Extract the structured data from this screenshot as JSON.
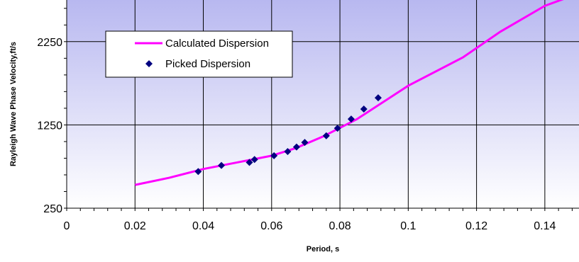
{
  "chart_data": {
    "type": "line",
    "xlabel": "Period, s",
    "ylabel": "Rayleigh Wave Phase Velocity,ft/s",
    "xlim": [
      0,
      0.15
    ],
    "ylim": [
      250,
      2750
    ],
    "x_ticks": [
      0,
      0.02,
      0.04,
      0.06,
      0.08,
      0.1,
      0.12,
      0.14
    ],
    "x_tick_labels": [
      "0",
      "0.02",
      "0.04",
      "0.06",
      "0.08",
      "0.1",
      "0.12",
      "0.14"
    ],
    "y_ticks": [
      250,
      1250,
      2250
    ],
    "y_tick_labels": [
      "250",
      "1250",
      "2250"
    ],
    "grid": true,
    "legend_position": "top-left",
    "series": [
      {
        "name": "Calculated Dispersion",
        "kind": "line",
        "color": "#ff00ff",
        "points": [
          [
            0.02,
            530
          ],
          [
            0.03,
            615
          ],
          [
            0.04,
            720
          ],
          [
            0.05,
            800
          ],
          [
            0.06,
            880
          ],
          [
            0.067,
            970
          ],
          [
            0.075,
            1110
          ],
          [
            0.085,
            1320
          ],
          [
            0.1,
            1720
          ],
          [
            0.116,
            2060
          ],
          [
            0.127,
            2370
          ],
          [
            0.14,
            2680
          ],
          [
            0.15,
            2830
          ]
        ]
      },
      {
        "name": "Picked Dispersion",
        "kind": "scatter",
        "color": "#000080",
        "points": [
          [
            0.0385,
            690
          ],
          [
            0.0453,
            763
          ],
          [
            0.0535,
            800
          ],
          [
            0.055,
            835
          ],
          [
            0.0607,
            880
          ],
          [
            0.0647,
            930
          ],
          [
            0.0673,
            985
          ],
          [
            0.0697,
            1040
          ],
          [
            0.076,
            1120
          ],
          [
            0.0793,
            1210
          ],
          [
            0.0833,
            1320
          ],
          [
            0.087,
            1440
          ],
          [
            0.0912,
            1575
          ]
        ]
      }
    ]
  }
}
